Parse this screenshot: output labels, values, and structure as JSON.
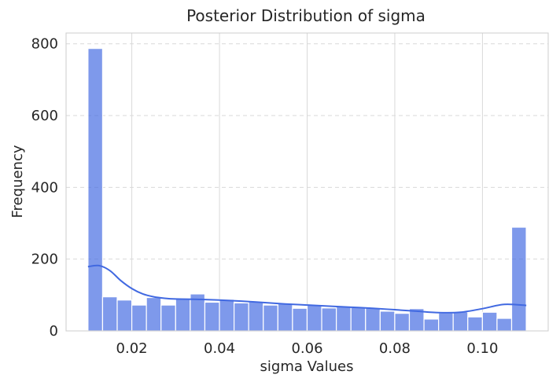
{
  "chart_data": {
    "type": "bar",
    "title": "Posterior Distribution of sigma",
    "xlabel": "sigma Values",
    "ylabel": "Frequency",
    "xlim": [
      0.005,
      0.115
    ],
    "ylim": [
      0,
      830
    ],
    "xticks": [
      0.02,
      0.04,
      0.06,
      0.08,
      0.1
    ],
    "xtick_labels": [
      "0.02",
      "0.04",
      "0.06",
      "0.08",
      "0.10"
    ],
    "yticks": [
      0,
      200,
      400,
      600,
      800
    ],
    "ytick_labels": [
      "0",
      "200",
      "400",
      "600",
      "800"
    ],
    "grid": true,
    "bins": {
      "start": 0.01,
      "width": 0.003333,
      "values": [
        787,
        95,
        86,
        72,
        93,
        72,
        90,
        103,
        80,
        88,
        78,
        81,
        72,
        77,
        63,
        72,
        64,
        68,
        65,
        64,
        55,
        49,
        62,
        33,
        50,
        53,
        39,
        52,
        35,
        289
      ]
    },
    "kde": {
      "x": [
        0.01,
        0.0125,
        0.015,
        0.0175,
        0.02,
        0.0225,
        0.025,
        0.0275,
        0.03,
        0.035,
        0.04,
        0.045,
        0.05,
        0.055,
        0.06,
        0.065,
        0.07,
        0.075,
        0.08,
        0.085,
        0.09,
        0.095,
        0.1,
        0.105,
        0.11
      ],
      "y": [
        179,
        182,
        168,
        140,
        118,
        103,
        95,
        91,
        89,
        88,
        86,
        83,
        79,
        75,
        72,
        69,
        66,
        63,
        59,
        55,
        51,
        52,
        62,
        74,
        71
      ]
    },
    "colors": {
      "bar": "#4169e1",
      "kde": "#4169e1",
      "grid": "#d9d9d9",
      "spine": "#cccccc",
      "text": "#262626"
    }
  }
}
